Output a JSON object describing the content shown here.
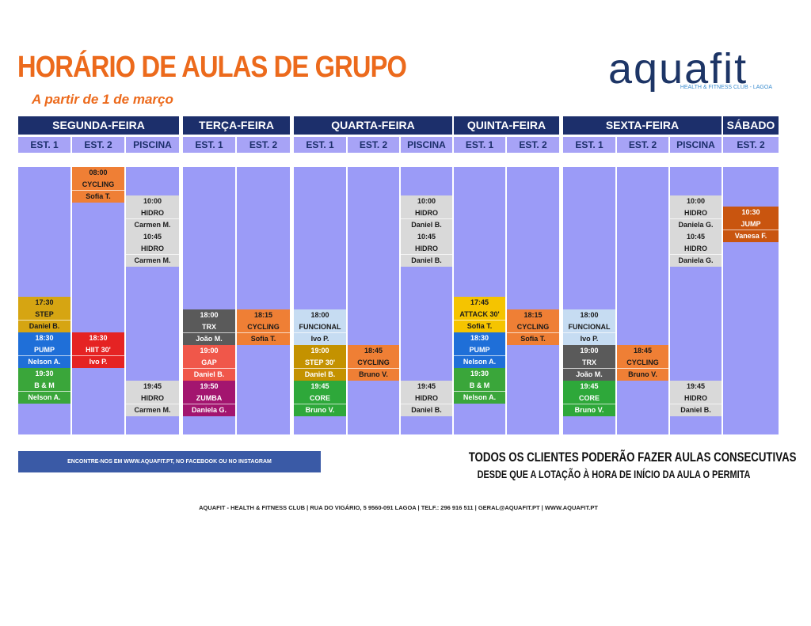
{
  "header": {
    "title": "HORÁRIO DE AULAS DE GRUPO",
    "subtitle": "A partir de 1 de março"
  },
  "logo": {
    "name": "aquafit",
    "tagline": "HEALTH & FITNESS CLUB - LAGOA"
  },
  "days": [
    {
      "name": "SEGUNDA-FEIRA",
      "columns": [
        {
          "name": "EST. 1",
          "classes": [
            {
              "time": "17:30",
              "name": "STEP",
              "instructor": "Daniel B.",
              "color": "#d6a512"
            },
            {
              "time": "18:30",
              "name": "PUMP",
              "instructor": "Nelson A.",
              "color": "#1f6fd8"
            },
            {
              "time": "19:30",
              "name": "B & M",
              "instructor": "Nelson A.",
              "color": "#3aa63a"
            }
          ]
        },
        {
          "name": "EST. 2",
          "classes": [
            {
              "time": "08:00",
              "name": "CYCLING",
              "instructor": "Sofia T.",
              "color": "#ef7f35"
            },
            {
              "time": "18:30",
              "name": "HIIT 30'",
              "instructor": "Ivo P.",
              "color": "#e52323"
            }
          ]
        },
        {
          "name": "PISCINA",
          "classes": [
            {
              "time": "10:00",
              "name": "HIDRO",
              "instructor": "Carmen M.",
              "color": "#d9d9d9"
            },
            {
              "time": "10:45",
              "name": "HIDRO",
              "instructor": "Carmen M.",
              "color": "#d9d9d9"
            },
            {
              "time": "19:45",
              "name": "HIDRO",
              "instructor": "Carmen M.",
              "color": "#d9d9d9"
            }
          ]
        }
      ]
    },
    {
      "name": "TERÇA-FEIRA",
      "columns": [
        {
          "name": "EST. 1",
          "classes": [
            {
              "time": "18:00",
              "name": "TRX",
              "instructor": "João M.",
              "color": "#5a5a5a"
            },
            {
              "time": "19:00",
              "name": "GAP",
              "instructor": "Daniel B.",
              "color": "#f0574a"
            },
            {
              "time": "19:50",
              "name": "ZUMBA",
              "instructor": "Daniela G.",
              "color": "#a3156f"
            }
          ]
        },
        {
          "name": "EST. 2",
          "classes": [
            {
              "time": "18:15",
              "name": "CYCLING",
              "instructor": "Sofia T.",
              "color": "#ef7f35"
            }
          ]
        }
      ]
    },
    {
      "name": "QUARTA-FEIRA",
      "columns": [
        {
          "name": "EST. 1",
          "classes": [
            {
              "time": "18:00",
              "name": "FUNCIONAL",
              "instructor": "Ivo P.",
              "color": "#c6dcf2"
            },
            {
              "time": "19:00",
              "name": "STEP 30'",
              "instructor": "Daniel B.",
              "color": "#c49200"
            },
            {
              "time": "19:45",
              "name": "CORE",
              "instructor": "Bruno V.",
              "color": "#2ea83a"
            }
          ]
        },
        {
          "name": "EST. 2",
          "classes": [
            {
              "time": "18:45",
              "name": "CYCLING",
              "instructor": "Bruno V.",
              "color": "#ef7f35"
            }
          ]
        },
        {
          "name": "PISCINA",
          "classes": [
            {
              "time": "10:00",
              "name": "HIDRO",
              "instructor": "Daniel B.",
              "color": "#d9d9d9"
            },
            {
              "time": "10:45",
              "name": "HIDRO",
              "instructor": "Daniel B.",
              "color": "#d9d9d9"
            },
            {
              "time": "19:45",
              "name": "HIDRO",
              "instructor": "Daniel B.",
              "color": "#d9d9d9"
            }
          ]
        }
      ]
    },
    {
      "name": "QUINTA-FEIRA",
      "columns": [
        {
          "name": "EST. 1",
          "classes": [
            {
              "time": "17:45",
              "name": "ATTACK 30'",
              "instructor": "Sofia T.",
              "color": "#f5c400"
            },
            {
              "time": "18:30",
              "name": "PUMP",
              "instructor": "Nelson A.",
              "color": "#1f6fd8"
            },
            {
              "time": "19:30",
              "name": "B & M",
              "instructor": "Nelson A.",
              "color": "#3aa63a"
            }
          ]
        },
        {
          "name": "EST. 2",
          "classes": [
            {
              "time": "18:15",
              "name": "CYCLING",
              "instructor": "Sofia T.",
              "color": "#ef7f35"
            }
          ]
        }
      ]
    },
    {
      "name": "SEXTA-FEIRA",
      "columns": [
        {
          "name": "EST. 1",
          "classes": [
            {
              "time": "18:00",
              "name": "FUNCIONAL",
              "instructor": "Ivo P.",
              "color": "#c6dcf2"
            },
            {
              "time": "19:00",
              "name": "TRX",
              "instructor": "João M.",
              "color": "#5a5a5a"
            },
            {
              "time": "19:45",
              "name": "CORE",
              "instructor": "Bruno V.",
              "color": "#2ea83a"
            }
          ]
        },
        {
          "name": "EST. 2",
          "classes": [
            {
              "time": "18:45",
              "name": "CYCLING",
              "instructor": "Bruno V.",
              "color": "#ef7f35"
            }
          ]
        },
        {
          "name": "PISCINA",
          "classes": [
            {
              "time": "10:00",
              "name": "HIDRO",
              "instructor": "Daniela G.",
              "color": "#d9d9d9"
            },
            {
              "time": "10:45",
              "name": "HIDRO",
              "instructor": "Daniela G.",
              "color": "#d9d9d9"
            },
            {
              "time": "19:45",
              "name": "HIDRO",
              "instructor": "Daniel B.",
              "color": "#d9d9d9"
            }
          ]
        }
      ]
    },
    {
      "name": "SÁBADO",
      "columns": [
        {
          "name": "EST. 2",
          "classes": [
            {
              "time": "10:30",
              "name": "JUMP",
              "instructor": "Vanesa F.",
              "color": "#c9550f"
            }
          ]
        }
      ]
    }
  ],
  "footer": {
    "banner": "ENCONTRE-NOS EM WWW.AQUAFIT.PT, NO FACEBOOK OU NO INSTAGRAM",
    "notice_line1": "TODOS OS CLIENTES PODERÃO FAZER AULAS CONSECUTIVAS",
    "notice_line2": "DESDE QUE A LOTAÇÃO À HORA DE INÍCIO DA AULA O PERMITA",
    "address": "AQUAFIT - HEALTH & FITNESS CLUB | RUA DO VIGÁRIO, 5 9560-091 LAGOA | TELF.: 296 916 511 | GERAL@AQUAFIT.PT | WWW.AQUAFIT.PT"
  }
}
